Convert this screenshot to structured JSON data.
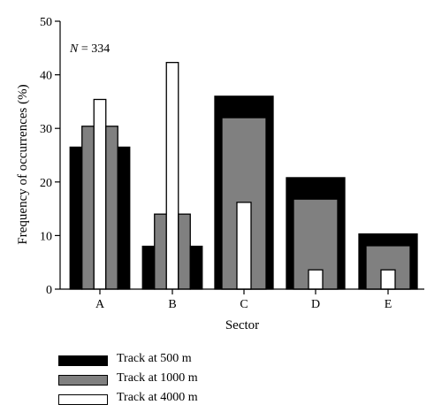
{
  "chart_data": {
    "type": "bar",
    "title": "",
    "xlabel": "Sector",
    "ylabel": "Frequency of occurrences (%)",
    "annotation": {
      "prefix": "N",
      "text": " = 334"
    },
    "categories": [
      "A",
      "B",
      "C",
      "D",
      "E"
    ],
    "ylim": [
      0,
      50
    ],
    "yticks": [
      0,
      10,
      20,
      30,
      40,
      50
    ],
    "grid": false,
    "legend_position": "bottom-left",
    "series": [
      {
        "name": "Track at 500 m",
        "color": "#000000",
        "values": [
          26.5,
          8.0,
          36.0,
          20.8,
          10.3
        ]
      },
      {
        "name": "Track at 1000 m",
        "color": "#808080",
        "values": [
          30.4,
          14.0,
          32.0,
          16.8,
          8.1
        ]
      },
      {
        "name": "Track at 4000 m",
        "color": "#ffffff",
        "values": [
          35.4,
          42.3,
          16.2,
          3.6,
          3.6
        ]
      }
    ],
    "styles": {
      "symmetric": [
        "A",
        "B"
      ],
      "nested": [
        "C",
        "D",
        "E"
      ]
    }
  }
}
